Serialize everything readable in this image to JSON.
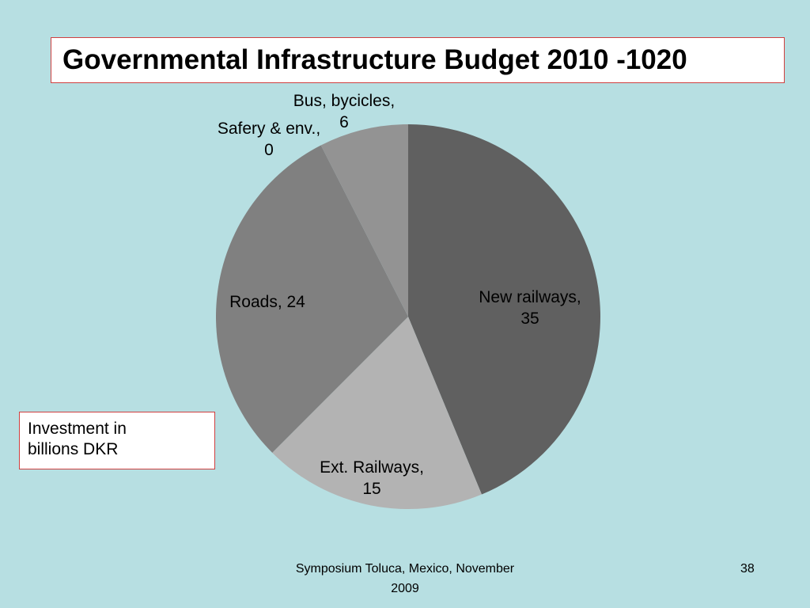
{
  "slide": {
    "footer": "Symposium  Toluca, Mexico, November 2009",
    "page_number": "38",
    "note": "Investment in billions DKR"
  },
  "chart_data": {
    "type": "pie",
    "title": "Governmental Infrastructure Budget 2010 -1020",
    "unit_note": "Investment in billions DKR",
    "slices": [
      {
        "label": "New railways",
        "value": 35,
        "display": [
          "New railways,",
          "35"
        ],
        "color": "#606060"
      },
      {
        "label": "Ext. Railways",
        "value": 15,
        "display": [
          "Ext. Railways,",
          "15"
        ],
        "color": "#b3b3b3"
      },
      {
        "label": "Roads",
        "value": 24,
        "display": [
          "Roads, 24"
        ],
        "color": "#808080"
      },
      {
        "label": "Safery & env.",
        "value": 0,
        "display": [
          "Safery & env.,",
          "0"
        ],
        "color": "#9a9a9a"
      },
      {
        "label": "Bus, bycicles",
        "value": 6,
        "display": [
          "Bus, bycicles,",
          "6"
        ],
        "color": "#939393"
      }
    ]
  }
}
